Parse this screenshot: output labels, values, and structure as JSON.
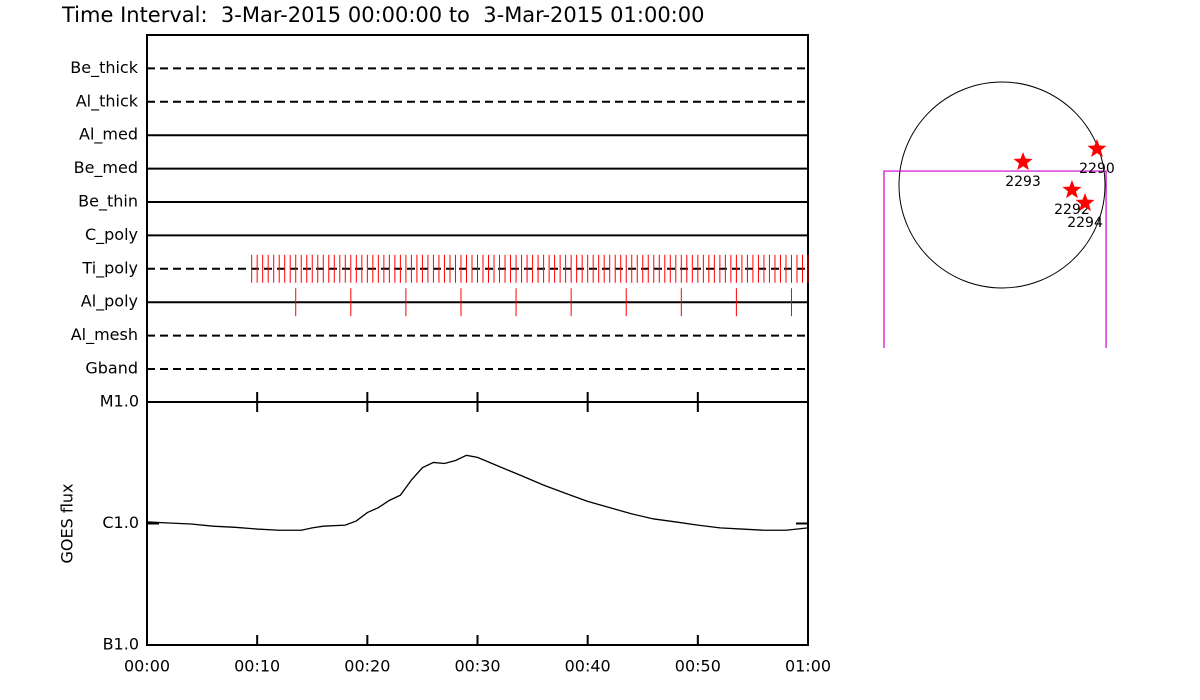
{
  "title": "Time Interval:  3-Mar-2015 00:00:00 to  3-Mar-2015 01:00:00",
  "chart_data": [
    {
      "type": "timeline",
      "categories": [
        "Be_thick",
        "Al_thick",
        "Al_med",
        "Be_med",
        "Be_thin",
        "C_poly",
        "Ti_poly",
        "Al_poly",
        "Al_mesh",
        "Gband"
      ],
      "line_styles": [
        "dashed",
        "dashed",
        "solid",
        "solid",
        "solid",
        "solid",
        "dashed",
        "solid",
        "dashed",
        "dashed"
      ],
      "xlim": [
        0,
        60
      ],
      "color": "#ff0000",
      "times": [
        [],
        [],
        [],
        [],
        [],
        [],
        [
          9.5,
          10,
          10.5,
          11,
          11.5,
          12,
          12.5,
          13,
          13.5,
          14,
          14.5,
          15,
          15.5,
          16,
          16.5,
          17,
          17.5,
          18,
          18.5,
          19,
          19.5,
          20,
          20.5,
          21,
          21.5,
          22,
          22.5,
          23,
          23.5,
          24,
          24.5,
          25,
          25.5,
          26,
          26.5,
          27,
          27.5,
          28,
          28.5,
          29,
          29.5,
          30,
          30.5,
          31,
          31.5,
          32,
          32.5,
          33,
          33.5,
          34,
          34.5,
          35,
          35.5,
          36,
          36.5,
          37,
          37.5,
          38,
          38.5,
          39,
          39.5,
          40,
          40.5,
          41,
          41.5,
          42,
          42.5,
          43,
          43.5,
          44,
          44.5,
          45,
          45.5,
          46,
          46.5,
          47,
          47.5,
          48,
          48.5,
          49,
          49.5,
          50,
          50.5,
          51,
          51.5,
          52,
          52.5,
          53,
          53.5,
          54,
          54.5,
          55,
          55.5,
          56,
          56.5,
          57,
          57.5,
          58,
          58.5,
          59,
          59.5,
          60
        ],
        [
          13.5,
          18.5,
          23.5,
          28.5,
          33.5,
          38.5,
          43.5,
          48.5,
          53.5,
          58.5
        ],
        [],
        []
      ]
    },
    {
      "type": "line",
      "ylabel": "GOES flux",
      "log_scale": true,
      "color": "#000000",
      "x": [
        0,
        2,
        4,
        6,
        8,
        10,
        12,
        14,
        15,
        16,
        18,
        19,
        20,
        21,
        22,
        23,
        24,
        25,
        26,
        27,
        28,
        29,
        30,
        32,
        34,
        36,
        38,
        40,
        42,
        44,
        46,
        48,
        50,
        52,
        54,
        56,
        58,
        60
      ],
      "values": [
        1.03e-06,
        1.01e-06,
        9.9e-07,
        9.5e-07,
        9.3e-07,
        9e-07,
        8.8e-07,
        8.8e-07,
        9.2e-07,
        9.5e-07,
        9.7e-07,
        1.05e-06,
        1.23e-06,
        1.35e-06,
        1.55e-06,
        1.71e-06,
        2.28e-06,
        2.88e-06,
        3.18e-06,
        3.12e-06,
        3.3e-06,
        3.64e-06,
        3.5e-06,
        2.94e-06,
        2.47e-06,
        2.07e-06,
        1.77e-06,
        1.52e-06,
        1.35e-06,
        1.2e-06,
        1.09e-06,
        1.03e-06,
        9.7e-07,
        9.2e-07,
        9e-07,
        8.8e-07,
        8.8e-07,
        9.2e-07
      ],
      "xlim": [
        0,
        60
      ],
      "xticks": [
        {
          "value": 0,
          "label": "00:00"
        },
        {
          "value": 10,
          "label": "00:10"
        },
        {
          "value": 20,
          "label": "00:20"
        },
        {
          "value": 30,
          "label": "00:30"
        },
        {
          "value": 40,
          "label": "00:40"
        },
        {
          "value": 50,
          "label": "00:50"
        },
        {
          "value": 60,
          "label": "01:00"
        }
      ],
      "ylim": [
        1e-07,
        1e-05
      ],
      "yticks": [
        {
          "value": 1e-07,
          "label": "B1.0"
        },
        {
          "value": 1e-06,
          "label": "C1.0"
        },
        {
          "value": 1e-05,
          "label": "M1.0"
        }
      ]
    }
  ],
  "map": {
    "star_color": "#ff0000",
    "fov_color": "#cc00cc",
    "regions": [
      {
        "label": "2290",
        "x": 885,
        "y": 336
      },
      {
        "label": "2293",
        "x": 196,
        "y": 214
      },
      {
        "label": "2292",
        "x": 652,
        "y": -47
      },
      {
        "label": "2294",
        "x": 774,
        "y": -168
      }
    ],
    "fov": {
      "x": [
        -1100,
        970
      ],
      "y": [
        -1520,
        130
      ]
    }
  }
}
